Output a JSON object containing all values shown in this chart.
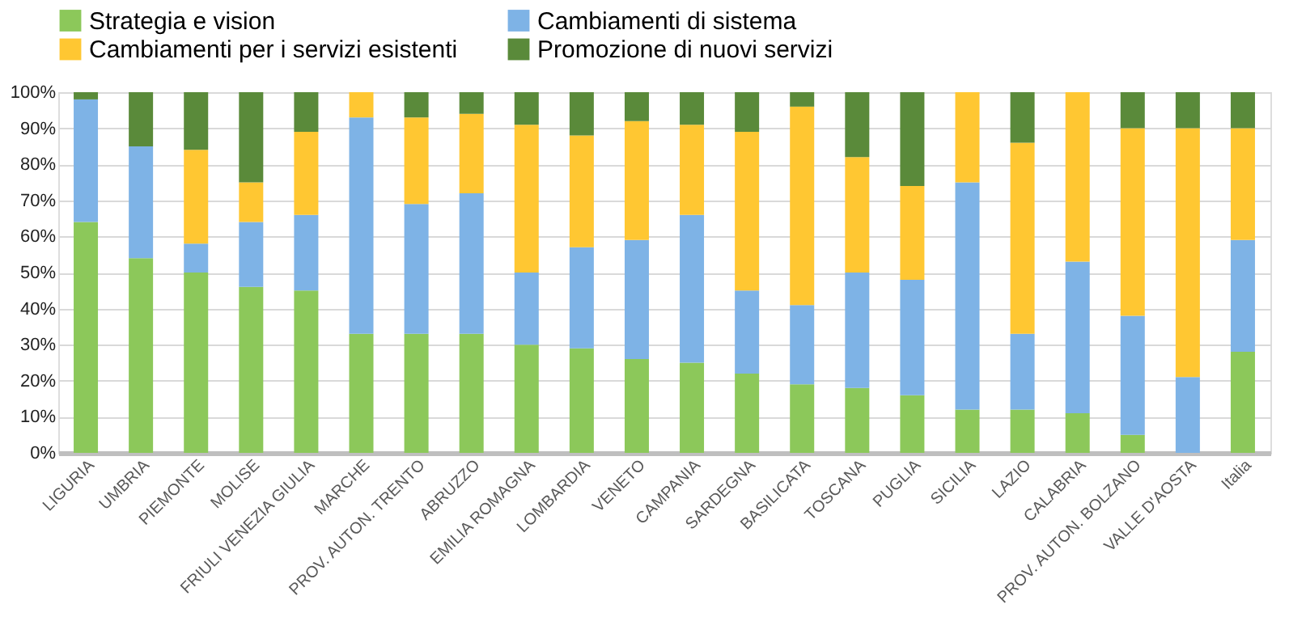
{
  "chart_data": {
    "type": "bar",
    "stacked": true,
    "legend": "top",
    "grid": "y",
    "categories": [
      "LIGURIA",
      "UMBRIA",
      "PIEMONTE",
      "MOLISE",
      "FRIULI VENEZIA GIULIA",
      "MARCHE",
      "PROV. AUTON. TRENTO",
      "ABRUZZO",
      "EMILIA ROMAGNA",
      "LOMBARDIA",
      "VENETO",
      "CAMPANIA",
      "SARDEGNA",
      "BASILICATA",
      "TOSCANA",
      "PUGLIA",
      "SICILIA",
      "LAZIO",
      "CALABRIA",
      "PROV. AUTON. BOLZANO",
      "VALLE D'AOSTA",
      "Italia"
    ],
    "series": [
      {
        "name": "Strategia e vision",
        "color": "#8cc85a",
        "values": [
          64,
          54,
          50,
          46,
          45,
          33,
          33,
          33,
          30,
          29,
          26,
          25,
          22,
          19,
          18,
          16,
          12,
          12,
          11,
          5,
          0,
          28
        ]
      },
      {
        "name": "Cambiamenti di sistema",
        "color": "#7eb3e6",
        "values": [
          34,
          31,
          8,
          18,
          21,
          60,
          36,
          39,
          20,
          28,
          33,
          41,
          23,
          22,
          32,
          32,
          63,
          21,
          42,
          33,
          21,
          31
        ]
      },
      {
        "name": "Cambiamenti per i servizi esistenti",
        "color": "#ffc732",
        "values": [
          0,
          0,
          26,
          11,
          23,
          7,
          24,
          22,
          41,
          31,
          33,
          25,
          44,
          55,
          32,
          26,
          25,
          53,
          47,
          52,
          69,
          31
        ]
      },
      {
        "name": "Promozione di nuovi servizi",
        "color": "#5a8a3a",
        "values": [
          2,
          15,
          16,
          25,
          11,
          0,
          7,
          6,
          9,
          12,
          8,
          9,
          11,
          4,
          18,
          26,
          0,
          14,
          0,
          10,
          10,
          10
        ]
      }
    ],
    "ylim": [
      0,
      100
    ],
    "yticks": [
      {
        "value": 0,
        "label": "0%"
      },
      {
        "value": 10,
        "label": "10%"
      },
      {
        "value": 20,
        "label": "20%"
      },
      {
        "value": 30,
        "label": "30%"
      },
      {
        "value": 40,
        "label": "40%"
      },
      {
        "value": 50,
        "label": "50%"
      },
      {
        "value": 60,
        "label": "60%"
      },
      {
        "value": 70,
        "label": "70%"
      },
      {
        "value": 80,
        "label": "80%"
      },
      {
        "value": 90,
        "label": "90%"
      },
      {
        "value": 100,
        "label": "100%"
      }
    ]
  }
}
